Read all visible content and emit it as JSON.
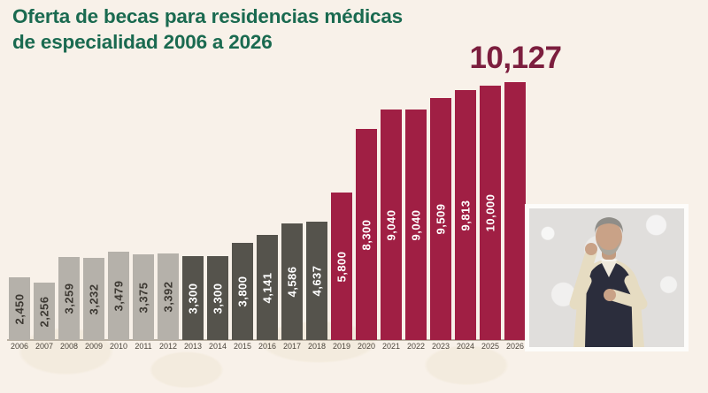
{
  "title": {
    "line1": "Oferta de becas para residencias médicas",
    "line2": "de especialidad 2006 a 2026"
  },
  "chart_data": {
    "type": "bar",
    "title": "Oferta de becas para residencias médicas de especialidad 2006 a 2026",
    "xlabel": "",
    "ylabel": "",
    "ylim": [
      0,
      10127
    ],
    "grid": false,
    "legend": false,
    "categories": [
      "2006",
      "2007",
      "2008",
      "2009",
      "2010",
      "2011",
      "2012",
      "2013",
      "2014",
      "2015",
      "2016",
      "2017",
      "2018",
      "2019",
      "2020",
      "2021",
      "2022",
      "2023",
      "2024",
      "2025",
      "2026"
    ],
    "values": [
      2450,
      2256,
      3259,
      3232,
      3479,
      3375,
      3392,
      3300,
      3300,
      3800,
      4141,
      4586,
      4637,
      5800,
      8300,
      9040,
      9040,
      9509,
      9813,
      10000,
      10127
    ],
    "value_labels": [
      "2,450",
      "2,256",
      "3,259",
      "3,232",
      "3,479",
      "3,375",
      "3,392",
      "3,300",
      "3,300",
      "3,800",
      "4,141",
      "4,586",
      "4,637",
      "5,800",
      "8,300",
      "9,040",
      "9,040",
      "9,509",
      "9,813",
      "10,000",
      "10,127"
    ],
    "color_groups": [
      "light",
      "light",
      "light",
      "light",
      "light",
      "light",
      "light",
      "dark",
      "dark",
      "dark",
      "dark",
      "dark",
      "dark",
      "accent",
      "accent",
      "accent",
      "accent",
      "accent",
      "accent",
      "accent",
      "accent"
    ],
    "highlight_label": "10,127",
    "highlight_category": "2026",
    "highlight_index": 20
  },
  "colors": {
    "background": "#f8f1e9",
    "watermark": "#f0e7d6",
    "title_green": "#1a6a50",
    "highlight_maroon": "#7c1e3e",
    "bar_light": "#b5b1aa",
    "bar_dark": "#55534c",
    "bar_accent": "#a01f44",
    "label_on_light": "#3d3933",
    "label_on_dark": "#ffffff",
    "axis_line": "#b9b0a2",
    "year_label": "#4b453c"
  }
}
